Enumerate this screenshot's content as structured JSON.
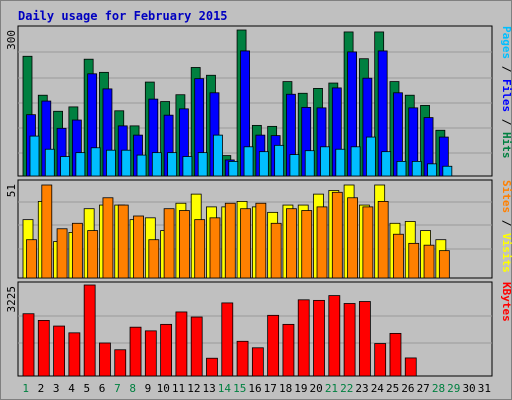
{
  "chart_data": {
    "type": "bar",
    "title": "Daily usage for February 2015",
    "days": [
      "1",
      "2",
      "3",
      "4",
      "5",
      "6",
      "7",
      "8",
      "9",
      "10",
      "11",
      "12",
      "13",
      "14",
      "15",
      "16",
      "17",
      "18",
      "19",
      "20",
      "21",
      "22",
      "23",
      "24",
      "25",
      "26",
      "27",
      "28",
      "29",
      "30",
      "31"
    ],
    "weekend_days": [
      1,
      7,
      8,
      14,
      15,
      21,
      22,
      28,
      29
    ],
    "panels": [
      {
        "name": "pages-files-hits",
        "ytick": "300",
        "ymax": 300,
        "series": [
          {
            "name": "Hits",
            "color": "#008040",
            "values": [
              246,
              166,
              133,
              142,
              240,
              213,
              134,
              103,
              193,
              153,
              167,
              223,
              207,
              42,
              300,
              104,
              102,
              194,
              170,
              180,
              191,
              296,
              241,
              296,
              194,
              166,
              145,
              94,
              null,
              null,
              null
            ]
          },
          {
            "name": "Files",
            "color": "#0000ff",
            "values": [
              126,
              154,
              98,
              115,
              210,
              179,
              103,
              84,
              158,
              125,
              138,
              200,
              171,
              33,
              257,
              84,
              83,
              168,
              141,
              140,
              181,
              255,
              201,
              257,
              171,
              140,
              120,
              80,
              null,
              null,
              null
            ]
          },
          {
            "name": "Pages",
            "color": "#00bfff",
            "values": [
              82,
              55,
              40,
              48,
              58,
              53,
              53,
              43,
              48,
              48,
              40,
              48,
              84,
              30,
              60,
              50,
              63,
              44,
              52,
              60,
              55,
              60,
              80,
              50,
              30,
              30,
              25,
              20,
              null,
              null,
              null
            ]
          }
        ],
        "label_colors": [
          "#00bfff",
          "#0000ff",
          "#008040"
        ]
      },
      {
        "name": "visits-sites",
        "ytick": "51",
        "ymax": 51,
        "series": [
          {
            "name": "Visits",
            "color": "#ffff00",
            "values": [
              32,
              42,
              20,
              25,
              38,
              40,
              40,
              32,
              33,
              26,
              41,
              46,
              39,
              39,
              42,
              39,
              36,
              40,
              40,
              46,
              48,
              51,
              40,
              51,
              30,
              31,
              26,
              21,
              null,
              null,
              null
            ]
          },
          {
            "name": "Sites",
            "color": "#ff8000",
            "values": [
              21,
              51,
              27,
              30,
              26,
              44,
              40,
              34,
              21,
              38,
              37,
              32,
              33,
              41,
              38,
              41,
              30,
              38,
              37,
              39,
              47,
              44,
              39,
              42,
              24,
              19,
              18,
              15,
              null,
              null,
              null
            ]
          }
        ],
        "label_colors": [
          "#ff8000",
          "#ffff00"
        ]
      },
      {
        "name": "kbytes",
        "ytick": "3225",
        "ymax": 3225,
        "series": [
          {
            "name": "KBytes",
            "color": "#ff0000",
            "values": [
              2207,
              1970,
              1770,
              1530,
              3225,
              1170,
              930,
              1730,
              1600,
              1830,
              2270,
              2090,
              630,
              2590,
              1230,
              1000,
              2150,
              1830,
              2700,
              2680,
              2850,
              2570,
              2640,
              1150,
              1510,
              640,
              null,
              null,
              null,
              null,
              null
            ]
          }
        ],
        "label_colors": [
          "#ff0000"
        ]
      }
    ]
  }
}
